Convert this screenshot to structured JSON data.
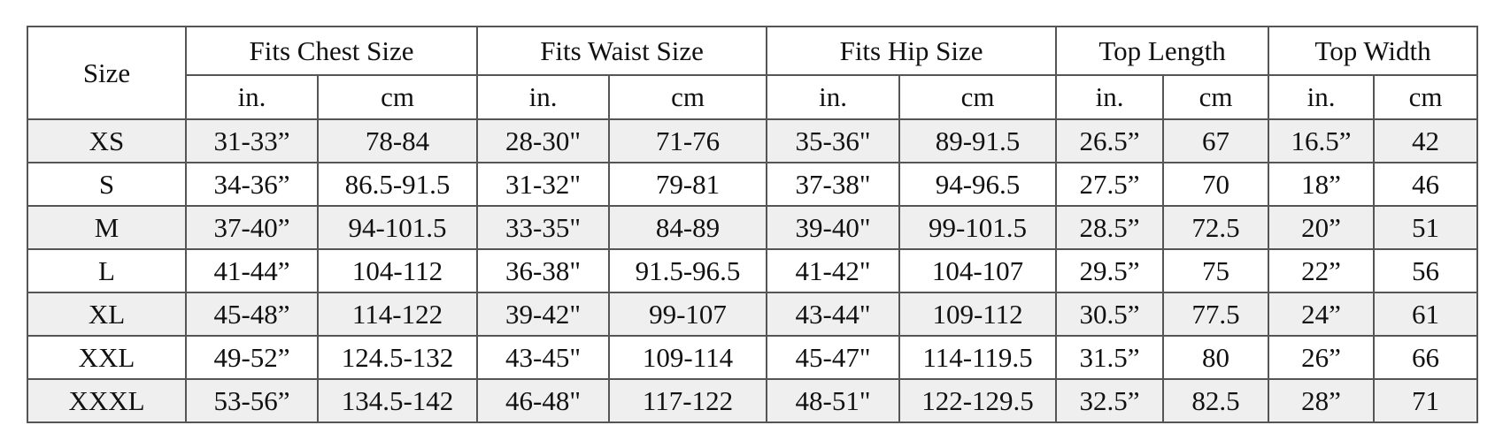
{
  "table": {
    "header": {
      "size": "Size",
      "groups": [
        "Fits Chest Size",
        "Fits Waist Size",
        "Fits Hip Size",
        "Top Length",
        "Top Width"
      ],
      "units": [
        "in.",
        "cm",
        "in.",
        "cm",
        "in.",
        "cm",
        "in.",
        "cm",
        "in.",
        "cm"
      ]
    },
    "rows": [
      [
        "XS",
        "31-33”",
        "78-84",
        "28-30\"",
        "71-76",
        "35-36\"",
        "89-91.5",
        "26.5”",
        "67",
        "16.5”",
        "42"
      ],
      [
        "S",
        "34-36”",
        "86.5-91.5",
        "31-32\"",
        "79-81",
        "37-38\"",
        "94-96.5",
        "27.5”",
        "70",
        "18”",
        "46"
      ],
      [
        "M",
        "37-40”",
        "94-101.5",
        "33-35\"",
        "84-89",
        "39-40\"",
        "99-101.5",
        "28.5”",
        "72.5",
        "20”",
        "51"
      ],
      [
        "L",
        "41-44”",
        "104-112",
        "36-38\"",
        "91.5-96.5",
        "41-42\"",
        "104-107",
        "29.5”",
        "75",
        "22”",
        "56"
      ],
      [
        "XL",
        "45-48”",
        "114-122",
        "39-42\"",
        "99-107",
        "43-44\"",
        "109-112",
        "30.5”",
        "77.5",
        "24”",
        "61"
      ],
      [
        "XXL",
        "49-52”",
        "124.5-132",
        "43-45\"",
        "109-114",
        "45-47\"",
        "114-119.5",
        "31.5”",
        "80",
        "26”",
        "66"
      ],
      [
        "XXXL",
        "53-56”",
        "134.5-142",
        "46-48\"",
        "117-122",
        "48-51\"",
        "122-129.5",
        "32.5”",
        "82.5",
        "28”",
        "71"
      ]
    ]
  }
}
